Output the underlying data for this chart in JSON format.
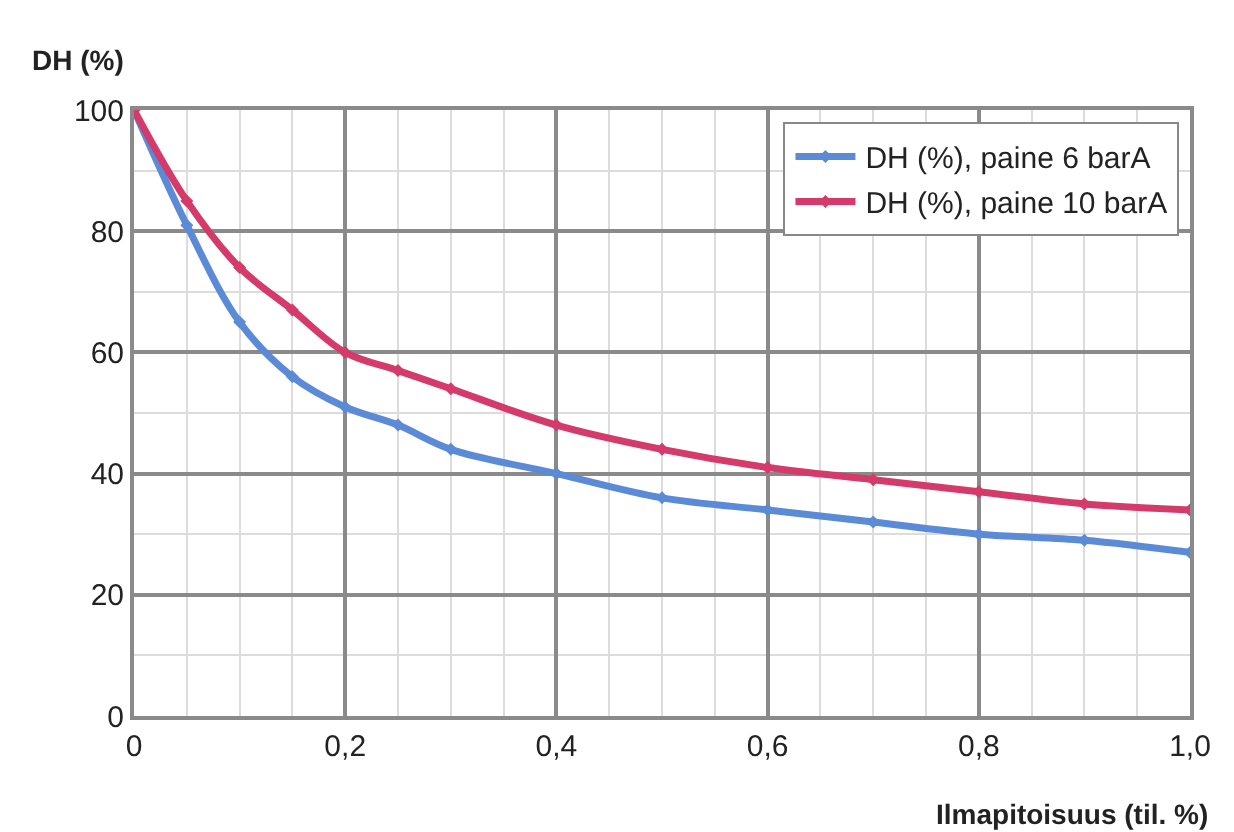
{
  "chart_data": {
    "type": "line",
    "ylabel": "DH (%)",
    "xlabel": "Ilmapitoisuus (til. %)",
    "x": [
      0,
      0.05,
      0.1,
      0.15,
      0.2,
      0.25,
      0.3,
      0.4,
      0.5,
      0.6,
      0.7,
      0.8,
      0.9,
      1.0
    ],
    "series": [
      {
        "name": "DH (%), paine 6 barA",
        "color": "#5b8bd6",
        "values": [
          100,
          81,
          65,
          56,
          51,
          48,
          44,
          40,
          36,
          34,
          32,
          30,
          29,
          27
        ]
      },
      {
        "name": "DH (%), paine 10 barA",
        "color": "#d43a6a",
        "values": [
          100,
          85,
          74,
          67,
          60,
          57,
          54,
          48,
          44,
          41,
          39,
          37,
          35,
          34
        ]
      }
    ],
    "xlim": [
      0,
      1.0
    ],
    "ylim": [
      0,
      100
    ],
    "xticks": [
      {
        "value": 0,
        "label": "0"
      },
      {
        "value": 0.2,
        "label": "0,2"
      },
      {
        "value": 0.4,
        "label": "0,4"
      },
      {
        "value": 0.6,
        "label": "0,6"
      },
      {
        "value": 0.8,
        "label": "0,8"
      },
      {
        "value": 1.0,
        "label": "1,0"
      }
    ],
    "yticks": [
      0,
      20,
      40,
      60,
      80,
      100
    ],
    "grid": true,
    "legend": "top right",
    "marker": "diamond",
    "line_style": "solid"
  }
}
